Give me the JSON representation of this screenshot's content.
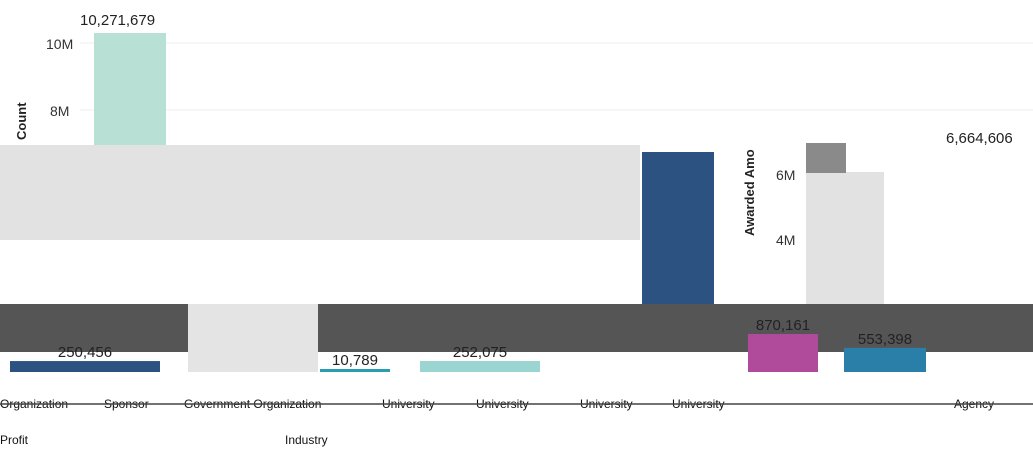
{
  "chart_data": [
    {
      "type": "bar",
      "title": "",
      "ylabel": "Count",
      "yticks": [
        "8M",
        "10M"
      ],
      "categories": [
        ""
      ],
      "values": [
        10271679
      ],
      "value_labels": [
        "10,271,679"
      ],
      "colors": [
        "#b8e0d4"
      ]
    },
    {
      "type": "bar",
      "title": "",
      "ylabel": "Awarded Amo",
      "yticks": [
        "4M",
        "6M"
      ],
      "values": [
        6664606
      ],
      "value_labels": [
        "6,664,606"
      ],
      "colors": [
        "#2c5282"
      ]
    },
    {
      "type": "bar",
      "title": "",
      "values": [
        870161,
        553398,
        250456,
        252075,
        10789
      ],
      "value_labels": [
        "870,161",
        "553,398",
        "250,456",
        "252,075",
        "10,789"
      ],
      "colors": [
        "#b04a9a",
        "#2a7fa8",
        "#2c5282",
        "#9ad5d1",
        "#2a9db0"
      ]
    }
  ],
  "category_labels": [
    "Organization",
    "Sponsor",
    "Government Organization",
    "University",
    "University",
    "University",
    "University",
    "Agency"
  ],
  "category_labels_under": [
    "Profit",
    "Industry"
  ]
}
